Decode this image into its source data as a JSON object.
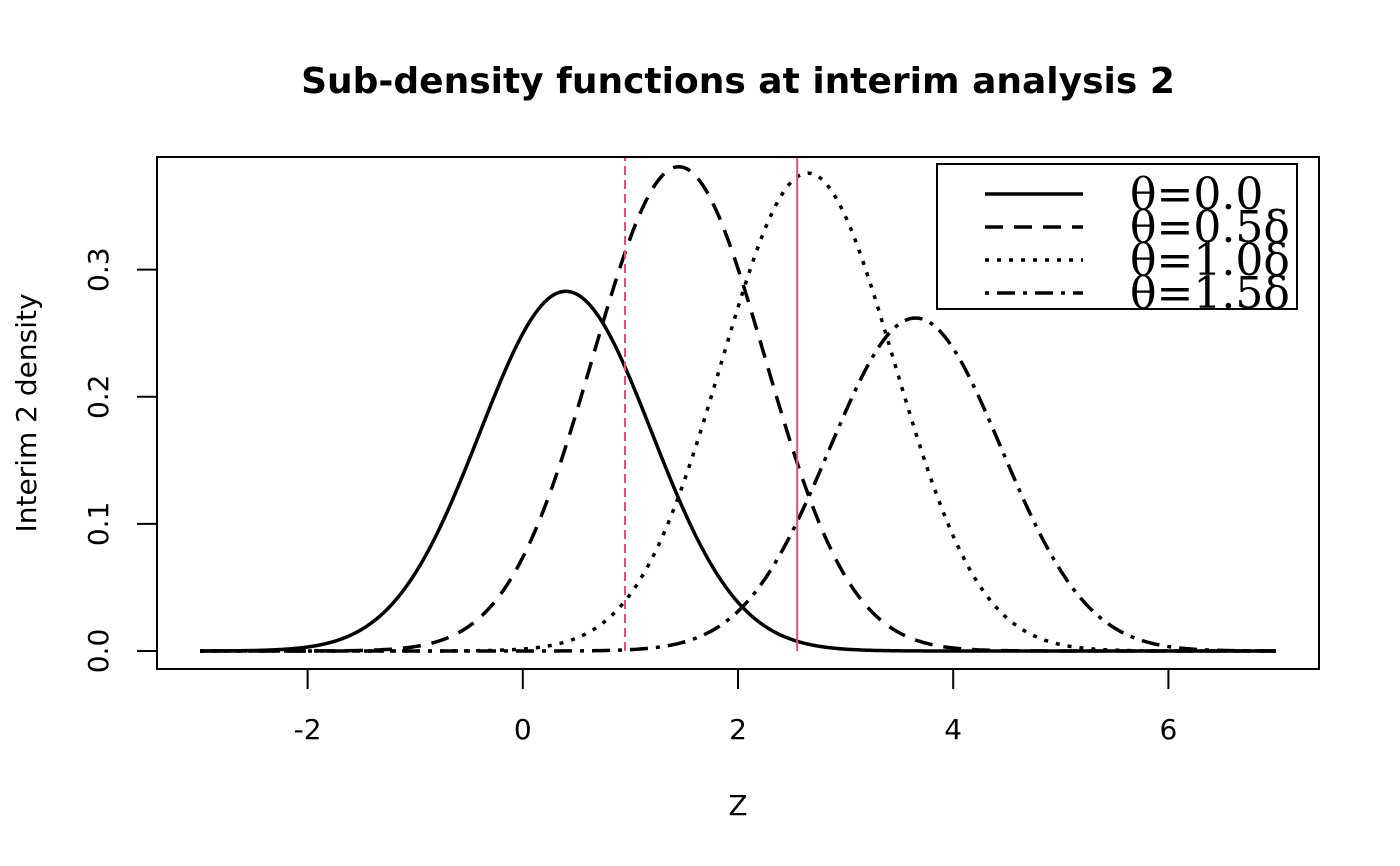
{
  "chart_data": {
    "type": "line",
    "title": "Sub-density functions at interim analysis 2",
    "xlabel": "Z",
    "ylabel": "Interim 2 density",
    "xlim": [
      -3,
      7
    ],
    "ylim": [
      0,
      0.38
    ],
    "x_ticks": [
      -2,
      0,
      2,
      4,
      6
    ],
    "x_tick_labels": [
      "-2",
      "0",
      "2",
      "4",
      "6"
    ],
    "y_ticks": [
      0.0,
      0.1,
      0.2,
      0.3
    ],
    "y_tick_labels": [
      "0.0",
      "0.1",
      "0.2",
      "0.3"
    ],
    "legend_position": "top-right",
    "series": [
      {
        "name": "θ=0.0",
        "label": "θ=0.0",
        "style": "solid",
        "color": "#000000",
        "mean": 0.4,
        "sd": 0.8,
        "peak": 0.283
      },
      {
        "name": "θ=0.5δ",
        "label": "θ=0.5δ",
        "style": "dashed",
        "color": "#000000",
        "mean": 1.45,
        "sd": 0.8,
        "peak": 0.381
      },
      {
        "name": "θ=1.0δ",
        "label": "θ=1.0δ",
        "style": "dotted",
        "color": "#000000",
        "mean": 2.65,
        "sd": 0.8,
        "peak": 0.376
      },
      {
        "name": "θ=1.5δ",
        "label": "θ=1.5δ",
        "style": "dotdash",
        "color": "#000000",
        "mean": 3.65,
        "sd": 0.8,
        "peak": 0.262
      }
    ],
    "vlines": [
      {
        "name": "lower-bound",
        "x": 0.95,
        "style": "dashed",
        "color": "#DF536B"
      },
      {
        "name": "upper-bound",
        "x": 2.55,
        "style": "solid",
        "color": "#DF536B"
      }
    ]
  }
}
